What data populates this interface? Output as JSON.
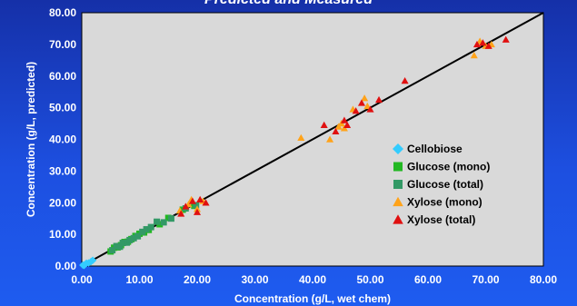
{
  "chart_data": {
    "type": "scatter",
    "title": "Predicted and Measured",
    "xlabel": "Concentration (g/L, wet chem)",
    "ylabel": "Concentration (g/L, predicted)",
    "xlim": [
      0,
      80
    ],
    "ylim": [
      0,
      80
    ],
    "x_ticks": [
      "0.00",
      "10.00",
      "20.00",
      "30.00",
      "40.00",
      "50.00",
      "60.00",
      "70.00",
      "80.00"
    ],
    "y_ticks": [
      "0.00",
      "10.00",
      "20.00",
      "30.00",
      "40.00",
      "50.00",
      "60.00",
      "70.00",
      "80.00"
    ],
    "grid": false,
    "reference_line": [
      [
        0,
        0
      ],
      [
        80,
        80
      ]
    ],
    "legend_position": "right",
    "colors": {
      "plot_bg": "#d9d9d9",
      "line": "#000000",
      "page_bg": "#1d4fe0"
    },
    "series": [
      {
        "name": "Cellobiose",
        "marker": "diamond",
        "color": "#33ccff",
        "points": [
          [
            0.2,
            0.3
          ],
          [
            0.5,
            0.4
          ],
          [
            0.8,
            0.9
          ],
          [
            1.2,
            1.0
          ],
          [
            1.6,
            1.4
          ],
          [
            1.9,
            1.8
          ],
          [
            0.4,
            0.2
          ]
        ]
      },
      {
        "name": "Glucose (mono)",
        "marker": "square",
        "color": "#22b822",
        "points": [
          [
            5.0,
            4.6
          ],
          [
            5.6,
            5.8
          ],
          [
            6.2,
            5.9
          ],
          [
            6.8,
            6.6
          ],
          [
            7.4,
            7.6
          ],
          [
            8.0,
            7.7
          ],
          [
            8.6,
            8.5
          ],
          [
            9.3,
            9.5
          ],
          [
            10.0,
            10.2
          ],
          [
            10.8,
            10.6
          ],
          [
            11.6,
            11.4
          ],
          [
            13.5,
            13.2
          ],
          [
            15.0,
            15.2
          ],
          [
            17.5,
            17.8
          ],
          [
            19.5,
            19.0
          ]
        ]
      },
      {
        "name": "Glucose (total)",
        "marker": "square",
        "color": "#339966",
        "points": [
          [
            5.3,
            5.0
          ],
          [
            6.0,
            6.3
          ],
          [
            6.6,
            6.1
          ],
          [
            7.1,
            7.3
          ],
          [
            7.8,
            7.4
          ],
          [
            8.3,
            8.2
          ],
          [
            9.0,
            8.8
          ],
          [
            9.7,
            9.4
          ],
          [
            10.5,
            10.8
          ],
          [
            11.2,
            11.6
          ],
          [
            12.0,
            12.3
          ],
          [
            13.0,
            14.0
          ],
          [
            14.2,
            13.8
          ],
          [
            15.5,
            15.0
          ],
          [
            18.0,
            18.2
          ],
          [
            19.8,
            19.2
          ]
        ]
      },
      {
        "name": "Xylose (mono)",
        "marker": "triangle",
        "color": "#ffa31a",
        "points": [
          [
            17.0,
            17.5
          ],
          [
            18.5,
            19.5
          ],
          [
            19.0,
            21.0
          ],
          [
            20.0,
            18.0
          ],
          [
            21.0,
            20.5
          ],
          [
            38.0,
            40.5
          ],
          [
            43.0,
            40.0
          ],
          [
            44.5,
            44.0
          ],
          [
            45.0,
            45.0
          ],
          [
            45.5,
            43.5
          ],
          [
            47.0,
            49.5
          ],
          [
            49.0,
            53.0
          ],
          [
            49.5,
            50.5
          ],
          [
            68.0,
            66.5
          ],
          [
            69.0,
            71.0
          ],
          [
            70.0,
            69.5
          ],
          [
            71.0,
            70.0
          ]
        ]
      },
      {
        "name": "Xylose (total)",
        "marker": "triangle",
        "color": "#e01010",
        "points": [
          [
            17.2,
            16.5
          ],
          [
            18.0,
            18.8
          ],
          [
            19.2,
            20.5
          ],
          [
            20.5,
            21.0
          ],
          [
            21.5,
            20.0
          ],
          [
            20.0,
            17.0
          ],
          [
            42.0,
            44.5
          ],
          [
            44.0,
            42.5
          ],
          [
            45.5,
            46.0
          ],
          [
            46.0,
            44.5
          ],
          [
            47.5,
            49.0
          ],
          [
            48.5,
            51.5
          ],
          [
            50.0,
            49.5
          ],
          [
            51.5,
            52.5
          ],
          [
            56.0,
            58.5
          ],
          [
            68.5,
            70.0
          ],
          [
            69.5,
            70.5
          ],
          [
            70.5,
            69.5
          ],
          [
            73.5,
            71.5
          ]
        ]
      }
    ]
  }
}
